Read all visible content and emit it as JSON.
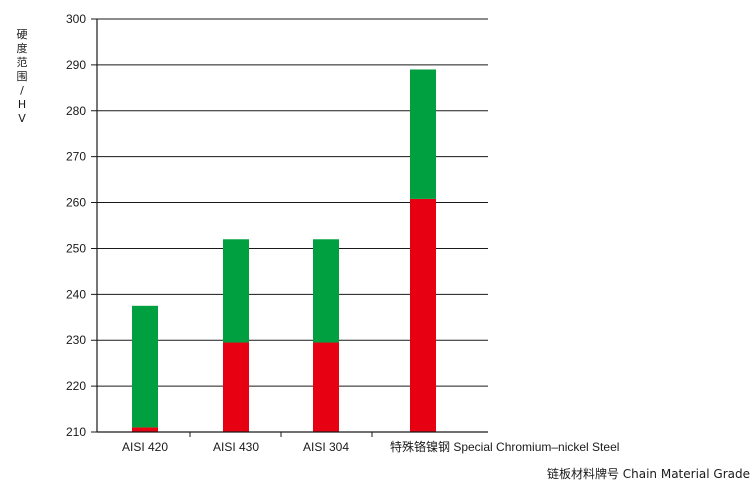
{
  "chart_data": {
    "type": "bar",
    "ylabel": "硬度范围/HV",
    "xlabel": "链板材料牌号  Chain Material Grade",
    "categories": [
      "AISI 420",
      "AISI 430",
      "AISI 304",
      "特殊铬镍钢 Special Chromium–nickel Steel"
    ],
    "ylim": [
      210,
      300
    ],
    "yticks": [
      210,
      220,
      230,
      240,
      250,
      260,
      270,
      280,
      290,
      300
    ],
    "grid": true,
    "series": [
      {
        "color": "#e60012",
        "values": [
          [
            210,
            211
          ],
          [
            210,
            229.5
          ],
          [
            210,
            229.5
          ],
          [
            210,
            260.8
          ]
        ]
      },
      {
        "color": "#00a040",
        "values": [
          [
            211,
            237.5
          ],
          [
            229.5,
            252
          ],
          [
            229.5,
            252
          ],
          [
            260.8,
            289
          ]
        ]
      }
    ]
  }
}
